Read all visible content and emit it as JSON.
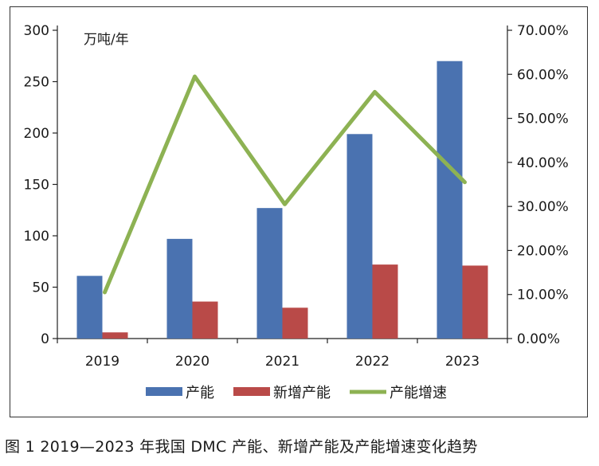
{
  "chart_data": {
    "type": "bar+line",
    "categories": [
      "2019",
      "2020",
      "2021",
      "2022",
      "2023"
    ],
    "series": [
      {
        "name": "产能",
        "type": "bar",
        "axis": "left",
        "color": "#4a72b0",
        "values": [
          61,
          97,
          127,
          199,
          270
        ]
      },
      {
        "name": "新增产能",
        "type": "bar",
        "axis": "left",
        "color": "#b94a48",
        "values": [
          6,
          36,
          30,
          72,
          71
        ]
      },
      {
        "name": "产能增速",
        "type": "line",
        "axis": "right",
        "color": "#8db253",
        "values": [
          0.105,
          0.595,
          0.305,
          0.56,
          0.355
        ]
      }
    ],
    "y_left": {
      "unit_label": "万吨/年",
      "ylim": [
        0,
        300
      ],
      "ticks": [
        0,
        50,
        100,
        150,
        200,
        250,
        300
      ]
    },
    "y_right": {
      "ylim": [
        0,
        0.7
      ],
      "ticks": [
        "0.00%",
        "10.00%",
        "20.00%",
        "30.00%",
        "40.00%",
        "50.00%",
        "60.00%",
        "70.00%"
      ]
    },
    "legend_position": "bottom",
    "grid": false
  },
  "caption": "图 1  2019—2023 年我国 DMC 产能、新增产能及产能增速变化趋势"
}
